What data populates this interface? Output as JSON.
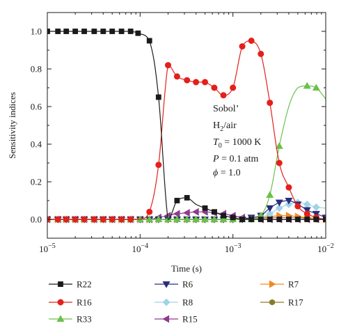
{
  "chart_data": {
    "type": "line",
    "xlabel": "Time (s)",
    "ylabel": "Sensitivity indices",
    "x_scale": "log",
    "xlim": [
      1e-05,
      0.01
    ],
    "ylim": [
      -0.1,
      1.1
    ],
    "grid": false,
    "legend_position": "bottom, three columns",
    "x_ticks": [
      {
        "value": 1e-05,
        "base": "10",
        "exp": "−5"
      },
      {
        "value": 0.0001,
        "base": "10",
        "exp": "−4"
      },
      {
        "value": 0.001,
        "base": "10",
        "exp": "−3"
      },
      {
        "value": 0.01,
        "base": "10",
        "exp": "−2"
      }
    ],
    "y_ticks": [
      {
        "value": 0.0,
        "label": "0.0"
      },
      {
        "value": 0.2,
        "label": "0.2"
      },
      {
        "value": 0.4,
        "label": "0.4"
      },
      {
        "value": 0.6,
        "label": "0.6"
      },
      {
        "value": 0.8,
        "label": "0.8"
      },
      {
        "value": 1.0,
        "label": "1.0"
      }
    ],
    "annotation": {
      "line1": "Sobol’",
      "line2_main": "H",
      "line2_sub": "2",
      "line2_rest": "/air",
      "line3_var": "T",
      "line3_sub": "0",
      "line3_rest": " = 1000 K",
      "line4_var": "P",
      "line4_rest": " = 0.1 atm",
      "line5_var": "ϕ",
      "line5_rest": " = 1.0"
    },
    "series": [
      {
        "name": "R22",
        "color": "#1a1a1a",
        "marker": "square",
        "x": [
          1e-05,
          1.3e-05,
          1.6e-05,
          2e-05,
          2.5e-05,
          3.2e-05,
          4e-05,
          5e-05,
          6.3e-05,
          7.9e-05,
          9.5e-05,
          0.000126,
          0.000158,
          0.0002,
          0.00025,
          0.00032,
          0.0004,
          0.0005,
          0.00063,
          0.00079,
          0.001,
          0.00126,
          0.00158,
          0.002,
          0.0025,
          0.00316,
          0.004,
          0.005,
          0.0063,
          0.0079,
          0.01
        ],
        "y": [
          1.0,
          1.0,
          1.0,
          1.0,
          1.0,
          1.0,
          1.0,
          1.0,
          1.0,
          1.0,
          0.99,
          0.95,
          0.65,
          0.0,
          0.1,
          0.115,
          0.08,
          0.06,
          0.04,
          0.02,
          0.01,
          0.0,
          0.0,
          0.0,
          0.0,
          0.0,
          0.0,
          0.0,
          0.0,
          0.0,
          0.0
        ],
        "markers": [
          1e-05,
          1.3e-05,
          1.6e-05,
          2e-05,
          2.5e-05,
          3.2e-05,
          4e-05,
          5e-05,
          6.3e-05,
          7.9e-05,
          9.5e-05,
          0.000126,
          0.000158,
          0.00025,
          0.00032,
          0.0005,
          0.00063,
          0.00079,
          0.001,
          0.00126,
          0.00158,
          0.002,
          0.0025,
          0.00316,
          0.004,
          0.005,
          0.0063,
          0.0079,
          0.01
        ]
      },
      {
        "name": "R16",
        "color": "#e3201b",
        "marker": "circle",
        "x": [
          1e-05,
          1.3e-05,
          1.6e-05,
          2e-05,
          2.5e-05,
          3.2e-05,
          4e-05,
          5e-05,
          6.3e-05,
          7.9e-05,
          0.0001,
          0.000126,
          0.000158,
          0.0002,
          0.00025,
          0.00032,
          0.0004,
          0.0005,
          0.00063,
          0.00079,
          0.001,
          0.00126,
          0.00158,
          0.002,
          0.0025,
          0.00316,
          0.004,
          0.005,
          0.0063,
          0.0079,
          0.01
        ],
        "y": [
          0.0,
          0.0,
          0.0,
          0.0,
          0.0,
          0.0,
          0.0,
          0.0,
          0.0,
          0.0,
          0.0,
          0.04,
          0.29,
          0.82,
          0.76,
          0.74,
          0.73,
          0.73,
          0.7,
          0.66,
          0.7,
          0.92,
          0.95,
          0.88,
          0.62,
          0.3,
          0.17,
          0.07,
          0.03,
          0.01,
          0.0
        ],
        "markers": [
          1e-05,
          1.3e-05,
          1.6e-05,
          2e-05,
          2.5e-05,
          3.2e-05,
          4e-05,
          5e-05,
          6.3e-05,
          7.9e-05,
          0.000126,
          0.000158,
          0.0002,
          0.00025,
          0.00032,
          0.0004,
          0.0005,
          0.00063,
          0.00079,
          0.001,
          0.00126,
          0.00158,
          0.002,
          0.0025,
          0.00316,
          0.004,
          0.005,
          0.0063,
          0.0079,
          0.01
        ]
      },
      {
        "name": "R33",
        "color": "#6cc04a",
        "marker": "triangle-up",
        "x": [
          1e-05,
          1.3e-05,
          1.6e-05,
          2e-05,
          2.5e-05,
          3.2e-05,
          4e-05,
          5e-05,
          6.3e-05,
          7.9e-05,
          0.0001,
          0.000126,
          0.000158,
          0.0002,
          0.00025,
          0.00032,
          0.0004,
          0.0005,
          0.00063,
          0.00079,
          0.001,
          0.00126,
          0.00158,
          0.002,
          0.0025,
          0.00316,
          0.004,
          0.005,
          0.0063,
          0.0079,
          0.01
        ],
        "y": [
          0.0,
          0.0,
          0.0,
          0.0,
          0.0,
          0.0,
          0.0,
          0.0,
          0.0,
          0.0,
          0.0,
          0.0,
          0.0,
          0.0,
          0.0,
          0.0,
          0.0,
          0.0,
          0.0,
          0.0,
          0.0,
          0.0,
          0.0,
          0.02,
          0.13,
          0.39,
          0.6,
          0.7,
          0.71,
          0.7,
          0.64
        ],
        "markers": [
          1e-05,
          1.3e-05,
          1.6e-05,
          2e-05,
          2.5e-05,
          3.2e-05,
          4e-05,
          5e-05,
          6.3e-05,
          7.9e-05,
          0.0001,
          0.000126,
          0.000158,
          0.0002,
          0.00025,
          0.00032,
          0.0004,
          0.0005,
          0.00063,
          0.00079,
          0.001,
          0.00126,
          0.00158,
          0.002,
          0.0025,
          0.00316,
          0.0063,
          0.0079
        ]
      },
      {
        "name": "R6",
        "color": "#2a2d7c",
        "marker": "triangle-down",
        "x": [
          1e-05,
          1.3e-05,
          1.6e-05,
          2e-05,
          2.5e-05,
          3.2e-05,
          4e-05,
          5e-05,
          6.3e-05,
          7.9e-05,
          0.0001,
          0.000126,
          0.000158,
          0.0002,
          0.00025,
          0.00032,
          0.0004,
          0.0005,
          0.00063,
          0.00079,
          0.001,
          0.00126,
          0.00158,
          0.002,
          0.0025,
          0.00316,
          0.004,
          0.005,
          0.0063,
          0.0079,
          0.01
        ],
        "y": [
          0.0,
          0.0,
          0.0,
          0.0,
          0.0,
          0.0,
          0.0,
          0.0,
          0.0,
          0.0,
          0.0,
          0.0,
          0.0,
          0.0,
          0.0,
          0.0,
          0.0,
          0.0,
          0.0,
          0.0,
          0.0,
          0.0,
          0.01,
          0.02,
          0.06,
          0.09,
          0.1,
          0.08,
          0.05,
          0.03,
          0.01
        ],
        "markers": [
          1e-05,
          1.3e-05,
          1.6e-05,
          2e-05,
          2.5e-05,
          3.2e-05,
          4e-05,
          5e-05,
          6.3e-05,
          7.9e-05,
          0.0001,
          0.000126,
          0.000158,
          0.0002,
          0.00025,
          0.00032,
          0.0004,
          0.0005,
          0.00063,
          0.00079,
          0.001,
          0.00126,
          0.00158,
          0.002,
          0.0025,
          0.00316,
          0.004,
          0.005,
          0.0063,
          0.0079,
          0.01
        ]
      },
      {
        "name": "R8",
        "color": "#9fd3e6",
        "marker": "diamond",
        "x": [
          1e-05,
          1.3e-05,
          1.6e-05,
          2e-05,
          2.5e-05,
          3.2e-05,
          4e-05,
          5e-05,
          6.3e-05,
          7.9e-05,
          0.0001,
          0.000126,
          0.000158,
          0.0002,
          0.00025,
          0.00032,
          0.0004,
          0.0005,
          0.00063,
          0.00079,
          0.001,
          0.00126,
          0.00158,
          0.002,
          0.0025,
          0.00316,
          0.004,
          0.005,
          0.0063,
          0.0079,
          0.01
        ],
        "y": [
          0.0,
          0.0,
          0.0,
          0.0,
          0.0,
          0.0,
          0.0,
          0.0,
          0.0,
          0.0,
          0.0,
          0.0,
          0.0,
          0.0,
          0.0,
          0.0,
          0.0,
          0.0,
          0.0,
          0.0,
          0.0,
          0.0,
          0.0,
          0.01,
          0.03,
          0.06,
          0.08,
          0.09,
          0.08,
          0.065,
          0.06
        ],
        "markers": [
          1e-05,
          1.3e-05,
          1.6e-05,
          2e-05,
          2.5e-05,
          3.2e-05,
          4e-05,
          5e-05,
          6.3e-05,
          7.9e-05,
          0.0001,
          0.000126,
          0.000158,
          0.0002,
          0.00025,
          0.00032,
          0.0004,
          0.0005,
          0.00063,
          0.00079,
          0.001,
          0.00126,
          0.00158,
          0.002,
          0.0025,
          0.00316,
          0.004,
          0.005,
          0.0063,
          0.0079
        ]
      },
      {
        "name": "R15",
        "color": "#8e3a8e",
        "marker": "triangle-left",
        "x": [
          1e-05,
          1.3e-05,
          1.6e-05,
          2e-05,
          2.5e-05,
          3.2e-05,
          4e-05,
          5e-05,
          6.3e-05,
          7.9e-05,
          0.0001,
          0.000126,
          0.000158,
          0.0002,
          0.00025,
          0.00032,
          0.0004,
          0.0005,
          0.00063,
          0.00079,
          0.001,
          0.00126,
          0.00158,
          0.002,
          0.0025,
          0.00316,
          0.004,
          0.005,
          0.0063,
          0.0079,
          0.01
        ],
        "y": [
          0.0,
          0.0,
          0.0,
          0.0,
          0.0,
          0.0,
          0.0,
          0.0,
          0.0,
          0.0,
          0.0,
          0.0,
          0.01,
          0.02,
          0.03,
          0.035,
          0.04,
          0.04,
          0.035,
          0.03,
          0.02,
          0.01,
          0.005,
          0.0,
          0.0,
          0.0,
          0.0,
          0.0,
          0.0,
          0.0,
          0.0
        ],
        "markers": [
          1e-05,
          1.3e-05,
          1.6e-05,
          2e-05,
          2.5e-05,
          3.2e-05,
          4e-05,
          5e-05,
          6.3e-05,
          7.9e-05,
          0.0001,
          0.000126,
          0.000158,
          0.0002,
          0.00025,
          0.00032,
          0.0004,
          0.0005,
          0.00063,
          0.00079,
          0.001,
          0.00126,
          0.00158,
          0.002,
          0.0025,
          0.00316,
          0.004,
          0.005,
          0.0063,
          0.0079,
          0.01
        ]
      },
      {
        "name": "R7",
        "color": "#f08a24",
        "marker": "triangle-right",
        "x": [
          1e-05,
          1.3e-05,
          1.6e-05,
          2e-05,
          2.5e-05,
          3.2e-05,
          4e-05,
          5e-05,
          6.3e-05,
          7.9e-05,
          0.0001,
          0.000126,
          0.000158,
          0.0002,
          0.00025,
          0.00032,
          0.0004,
          0.0005,
          0.00063,
          0.00079,
          0.001,
          0.00126,
          0.00158,
          0.002,
          0.0025,
          0.00316,
          0.004,
          0.005,
          0.0063,
          0.0079,
          0.01
        ],
        "y": [
          0.0,
          0.0,
          0.0,
          0.0,
          0.0,
          0.0,
          0.0,
          0.0,
          0.0,
          0.0,
          0.0,
          0.0,
          0.0,
          0.0,
          0.0,
          0.0,
          0.0,
          0.0,
          0.0,
          0.0,
          0.0,
          0.0,
          0.005,
          0.01,
          0.015,
          0.02,
          0.02,
          0.015,
          0.01,
          0.005,
          0.0
        ],
        "markers": [
          1e-05,
          1.3e-05,
          1.6e-05,
          2e-05,
          2.5e-05,
          3.2e-05,
          4e-05,
          5e-05,
          6.3e-05,
          7.9e-05,
          0.0001,
          0.000126,
          0.000158,
          0.0002,
          0.00025,
          0.00032,
          0.0004,
          0.0005,
          0.00063,
          0.00079,
          0.001,
          0.00126,
          0.00158,
          0.002,
          0.0025,
          0.00316,
          0.004,
          0.005,
          0.0063,
          0.0079,
          0.01
        ]
      },
      {
        "name": "R17",
        "color": "#8a7a2a",
        "marker": "hexagon",
        "x": [
          1e-05,
          1.3e-05,
          1.6e-05,
          2e-05,
          2.5e-05,
          3.2e-05,
          4e-05,
          5e-05,
          6.3e-05,
          7.9e-05,
          0.0001,
          0.000126,
          0.000158,
          0.0002,
          0.00025,
          0.00032,
          0.0004,
          0.0005,
          0.00063,
          0.00079,
          0.001,
          0.00126,
          0.00158,
          0.002,
          0.0025,
          0.00316,
          0.004,
          0.005,
          0.0063,
          0.0079,
          0.01
        ],
        "y": [
          0.0,
          0.0,
          0.0,
          0.0,
          0.0,
          0.0,
          0.0,
          0.0,
          0.0,
          0.0,
          0.0,
          0.0,
          0.0,
          0.0,
          0.0,
          0.0,
          0.0,
          0.0,
          0.0,
          0.0,
          0.0,
          0.0,
          0.0,
          0.005,
          0.01,
          0.01,
          0.01,
          0.01,
          0.005,
          0.0,
          0.0
        ],
        "markers": [
          1e-05,
          1.3e-05,
          1.6e-05,
          2e-05,
          2.5e-05,
          3.2e-05,
          4e-05,
          5e-05,
          6.3e-05,
          7.9e-05,
          0.0001,
          0.000126,
          0.000158,
          0.0002,
          0.00025,
          0.00032,
          0.0004,
          0.0005,
          0.00063,
          0.00079,
          0.001,
          0.00126,
          0.00158,
          0.002,
          0.0025,
          0.00316,
          0.004,
          0.005,
          0.0063,
          0.0079,
          0.01
        ]
      }
    ],
    "legend": {
      "columns": [
        [
          "R22",
          "R16",
          "R33"
        ],
        [
          "R6",
          "R8",
          "R15"
        ],
        [
          "R7",
          "R17"
        ]
      ]
    }
  }
}
